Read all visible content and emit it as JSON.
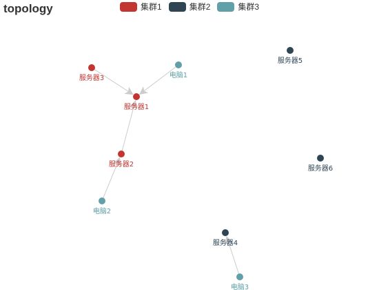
{
  "title": "topology",
  "colors": {
    "cluster1": "#c23531",
    "cluster2": "#2f4554",
    "cluster3": "#61a0a8",
    "edge": "#cccccc"
  },
  "legend": [
    {
      "label": "集群1",
      "color": "#c23531"
    },
    {
      "label": "集群2",
      "color": "#2f4554"
    },
    {
      "label": "集群3",
      "color": "#61a0a8"
    }
  ],
  "nodes": [
    {
      "id": "server3",
      "label": "服务器3",
      "cluster": "cluster1"
    },
    {
      "id": "pc1",
      "label": "电脑1",
      "cluster": "cluster3"
    },
    {
      "id": "server1",
      "label": "服务器1",
      "cluster": "cluster1"
    },
    {
      "id": "server5",
      "label": "服务器5",
      "cluster": "cluster2"
    },
    {
      "id": "server2",
      "label": "服务器2",
      "cluster": "cluster1"
    },
    {
      "id": "server6",
      "label": "服务器6",
      "cluster": "cluster2"
    },
    {
      "id": "pc2",
      "label": "电脑2",
      "cluster": "cluster3"
    },
    {
      "id": "server4",
      "label": "服务器4",
      "cluster": "cluster2"
    },
    {
      "id": "pc3",
      "label": "电脑3",
      "cluster": "cluster3"
    }
  ],
  "edges": [
    {
      "source": "server3",
      "target": "server1",
      "arrow": true
    },
    {
      "source": "pc1",
      "target": "server1",
      "arrow": true
    },
    {
      "source": "server2",
      "target": "server1",
      "arrow": true
    },
    {
      "source": "pc2",
      "target": "server2",
      "arrow": true
    },
    {
      "source": "pc3",
      "target": "server4",
      "arrow": true
    }
  ]
}
